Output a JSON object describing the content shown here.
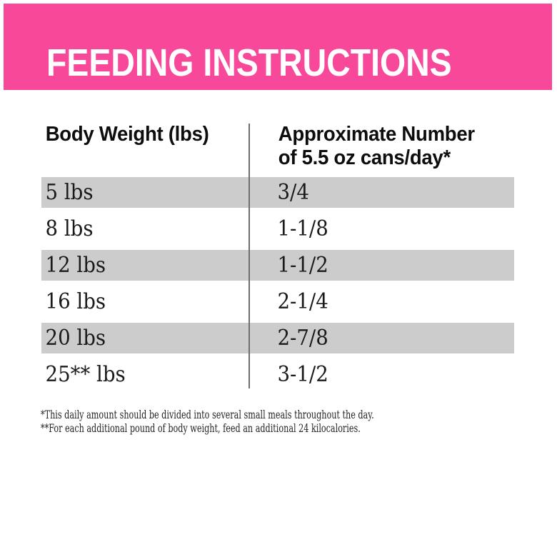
{
  "colors": {
    "banner_pink": "#F8489A",
    "banner_text": "#FFFFFF",
    "row_alt_gray": "#CCCCCC",
    "divider_gray": "#6E6E6E",
    "text_black": "#1A1A1A"
  },
  "banner": {
    "title": "FEEDING INSTRUCTIONS"
  },
  "table": {
    "header": {
      "col1": "Body Weight (lbs)",
      "col2_line1": "Approximate Number",
      "col2_line2": "of 5.5 oz cans/day*"
    },
    "rows": [
      {
        "weight": "5 lbs",
        "cans": "3/4"
      },
      {
        "weight": "8 lbs",
        "cans": "1-1/8"
      },
      {
        "weight": "12 lbs",
        "cans": "1-1/2"
      },
      {
        "weight": "16 lbs",
        "cans": "2-1/4"
      },
      {
        "weight": "20 lbs",
        "cans": "2-7/8"
      },
      {
        "weight": "25** lbs",
        "cans": "3-1/2"
      }
    ]
  },
  "footnotes": {
    "line1": "*This daily amount should be divided into several small meals throughout the day.",
    "line2": "**For each additional pound of body weight, feed an additional 24 kilocalories."
  }
}
